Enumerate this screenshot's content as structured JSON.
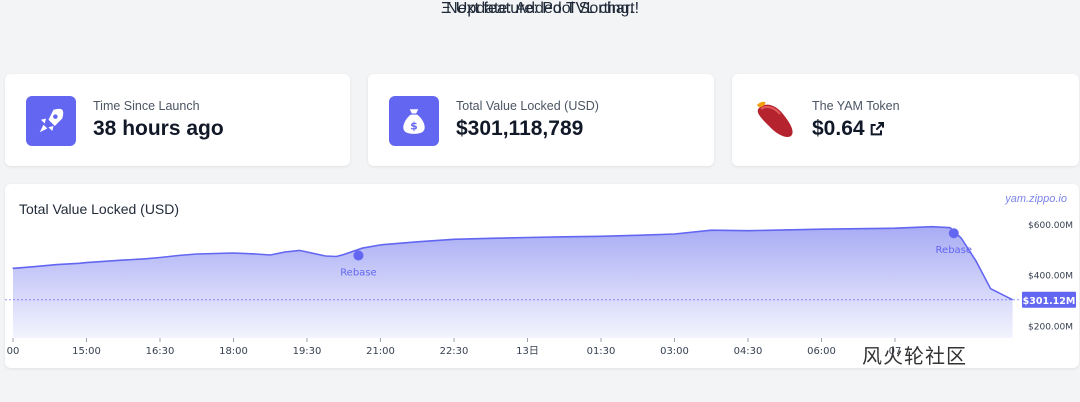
{
  "announcement": {
    "line1": "Ξ Update: Added TVL chart!",
    "line2": "Next feature: Pool Sorting."
  },
  "cards": [
    {
      "label": "Time Since Launch",
      "value": "38 hours ago",
      "icon": "rocket-icon"
    },
    {
      "label": "Total Value Locked (USD)",
      "value": "$301,118,789",
      "icon": "money-bag-icon"
    },
    {
      "label": "The YAM Token",
      "value": "$0.64",
      "icon": "yam-icon"
    }
  ],
  "colors": {
    "accent": "#6366f1",
    "area": "#8b90f0"
  },
  "chart_data": {
    "type": "area",
    "title": "Total Value Locked (USD)",
    "source_label": "yam.zippo.io",
    "x_tick_labels": [
      "00",
      "15:00",
      "16:30",
      "18:00",
      "19:30",
      "21:00",
      "22:30",
      "13日",
      "01:30",
      "03:00",
      "04:30",
      "06:00",
      "07"
    ],
    "y_tick_labels": [
      "$600.00M",
      "$400.00M",
      "$200.00M"
    ],
    "current_value_label": "$301.12M",
    "ylim": [
      150,
      640
    ],
    "series": [
      {
        "values": [
          [
            0,
            425
          ],
          [
            0.3,
            432
          ],
          [
            0.6,
            440
          ],
          [
            0.9,
            445
          ],
          [
            1.0,
            448
          ],
          [
            1.2,
            452
          ],
          [
            1.5,
            458
          ],
          [
            1.8,
            463
          ],
          [
            2.0,
            468
          ],
          [
            2.25,
            476
          ],
          [
            2.5,
            482
          ],
          [
            2.75,
            484
          ],
          [
            3.0,
            486
          ],
          [
            3.3,
            482
          ],
          [
            3.5,
            478
          ],
          [
            3.7,
            490
          ],
          [
            3.9,
            496
          ],
          [
            4.25,
            474
          ],
          [
            4.4,
            472
          ],
          [
            4.5,
            480
          ],
          [
            4.75,
            505
          ],
          [
            5.0,
            518
          ],
          [
            5.5,
            530
          ],
          [
            6.0,
            540
          ],
          [
            6.5,
            544
          ],
          [
            7.0,
            547
          ],
          [
            7.5,
            550
          ],
          [
            8.0,
            552
          ],
          [
            8.5,
            556
          ],
          [
            9.0,
            561
          ],
          [
            9.5,
            576
          ],
          [
            10.0,
            574
          ],
          [
            10.5,
            577
          ],
          [
            11.0,
            580
          ],
          [
            11.5,
            582
          ],
          [
            12.0,
            584
          ],
          [
            12.5,
            590
          ],
          [
            12.75,
            586
          ],
          [
            12.9,
            545
          ],
          [
            13.1,
            455
          ],
          [
            13.3,
            345
          ],
          [
            13.6,
            301
          ]
        ]
      }
    ],
    "annotations": [
      {
        "x": 4.7,
        "y": 476,
        "label": "Rebase"
      },
      {
        "x": 12.8,
        "y": 564,
        "label": "Rebase"
      }
    ],
    "current_value": 301.12
  },
  "footer_watermark": "风火轮社区"
}
